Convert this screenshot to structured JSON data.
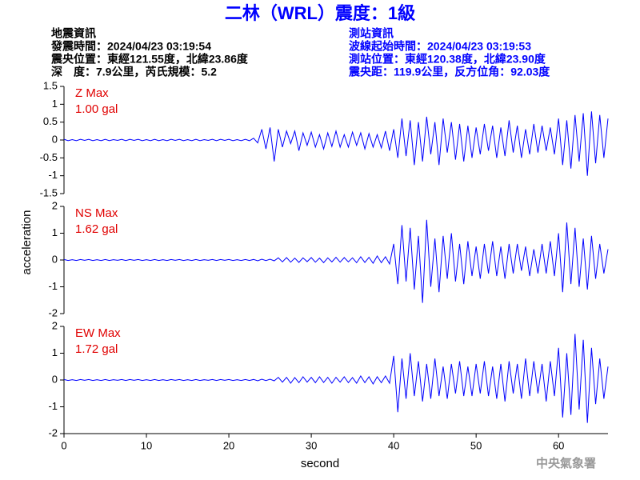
{
  "header": {
    "title": "二林（WRL）震度：1級",
    "left": [
      "地震資訊",
      "發震時間：2024/04/23 03:19:54",
      "震央位置：東經121.55度，北緯23.86度",
      "深　度：7.9公里，芮氏規模：5.2"
    ],
    "right": [
      "測站資訊",
      "波線起始時間：2024/04/23 03:19:53",
      "測站位置：東經120.38度，北緯23.90度",
      "震央距：119.9公里，反方位角：92.03度"
    ]
  },
  "y_label": "acceleration",
  "x_label": "second",
  "footer": "中央氣象署",
  "chart_data": [
    {
      "type": "line",
      "annotation": [
        "Z Max",
        "1.00 gal"
      ],
      "xlim": [
        0,
        66
      ],
      "ylim": [
        -1.5,
        1.5
      ],
      "yticks": [
        -1.5,
        -1,
        -0.5,
        0,
        0.5,
        1,
        1.5
      ],
      "x": [
        0,
        0.5,
        1,
        1.5,
        2,
        2.5,
        3,
        3.5,
        4,
        4.5,
        5,
        5.5,
        6,
        6.5,
        7,
        7.5,
        8,
        8.5,
        9,
        9.5,
        10,
        10.5,
        11,
        11.5,
        12,
        12.5,
        13,
        13.5,
        14,
        14.5,
        15,
        15.5,
        16,
        16.5,
        17,
        17.5,
        18,
        18.5,
        19,
        19.5,
        20,
        20.5,
        21,
        21.5,
        22,
        22.5,
        23,
        23.5,
        24,
        24.5,
        25,
        25.5,
        26,
        26.5,
        27,
        27.5,
        28,
        28.5,
        29,
        29.5,
        30,
        30.5,
        31,
        31.5,
        32,
        32.5,
        33,
        33.5,
        34,
        34.5,
        35,
        35.5,
        36,
        36.5,
        37,
        37.5,
        38,
        38.5,
        39,
        39.5,
        40,
        40.5,
        41,
        41.5,
        42,
        42.5,
        43,
        43.5,
        44,
        44.5,
        45,
        45.5,
        46,
        46.5,
        47,
        47.5,
        48,
        48.5,
        49,
        49.5,
        50,
        50.5,
        51,
        51.5,
        52,
        52.5,
        53,
        53.5,
        54,
        54.5,
        55,
        55.5,
        56,
        56.5,
        57,
        57.5,
        58,
        58.5,
        59,
        59.5,
        60,
        60.5,
        61,
        61.5,
        62,
        62.5,
        63,
        63.5,
        64,
        64.5,
        65,
        65.5,
        66
      ],
      "series": [
        {
          "name": "Z",
          "color": "#0000ff",
          "values": [
            0.02,
            -0.02,
            0.01,
            -0.02,
            0.02,
            -0.01,
            0.02,
            -0.02,
            0.01,
            -0.02,
            0.02,
            -0.02,
            0.01,
            -0.01,
            0.02,
            -0.02,
            0.02,
            -0.01,
            0.02,
            -0.02,
            0.01,
            -0.02,
            0.02,
            -0.02,
            0.01,
            -0.02,
            0.02,
            -0.01,
            0.02,
            -0.02,
            0.01,
            -0.02,
            0.02,
            -0.02,
            0.01,
            -0.01,
            0.02,
            -0.02,
            0.02,
            -0.01,
            0.02,
            -0.02,
            0.01,
            -0.02,
            0.02,
            -0.02,
            0.05,
            -0.08,
            0.3,
            -0.25,
            0.35,
            -0.6,
            0.3,
            -0.2,
            0.25,
            -0.1,
            0.25,
            -0.3,
            0.2,
            -0.15,
            0.22,
            -0.2,
            0.15,
            -0.25,
            0.2,
            -0.18,
            0.25,
            -0.2,
            0.15,
            -0.2,
            0.22,
            -0.15,
            0.2,
            -0.25,
            0.18,
            -0.2,
            0.15,
            -0.22,
            0.25,
            -0.3,
            0.3,
            -0.5,
            0.6,
            -0.45,
            0.55,
            -0.7,
            0.5,
            -0.6,
            0.65,
            -0.4,
            0.5,
            -0.7,
            0.6,
            -0.35,
            0.5,
            -0.55,
            0.45,
            -0.6,
            0.4,
            -0.5,
            0.35,
            -0.4,
            0.45,
            -0.3,
            0.4,
            -0.5,
            0.35,
            -0.45,
            0.55,
            -0.35,
            0.4,
            -0.5,
            0.3,
            -0.4,
            0.45,
            -0.35,
            0.4,
            -0.3,
            0.35,
            -0.4,
            0.6,
            -0.7,
            0.55,
            -0.8,
            0.7,
            -0.6,
            0.75,
            -1.0,
            0.8,
            -0.65,
            0.7,
            -0.5,
            0.6
          ]
        }
      ]
    },
    {
      "type": "line",
      "annotation": [
        "NS Max",
        "1.62 gal"
      ],
      "xlim": [
        0,
        66
      ],
      "ylim": [
        -2,
        2
      ],
      "yticks": [
        -2,
        -1,
        0,
        1,
        2
      ],
      "x": [
        0,
        0.5,
        1,
        1.5,
        2,
        2.5,
        3,
        3.5,
        4,
        4.5,
        5,
        5.5,
        6,
        6.5,
        7,
        7.5,
        8,
        8.5,
        9,
        9.5,
        10,
        10.5,
        11,
        11.5,
        12,
        12.5,
        13,
        13.5,
        14,
        14.5,
        15,
        15.5,
        16,
        16.5,
        17,
        17.5,
        18,
        18.5,
        19,
        19.5,
        20,
        20.5,
        21,
        21.5,
        22,
        22.5,
        23,
        23.5,
        24,
        24.5,
        25,
        25.5,
        26,
        26.5,
        27,
        27.5,
        28,
        28.5,
        29,
        29.5,
        30,
        30.5,
        31,
        31.5,
        32,
        32.5,
        33,
        33.5,
        34,
        34.5,
        35,
        35.5,
        36,
        36.5,
        37,
        37.5,
        38,
        38.5,
        39,
        39.5,
        40,
        40.5,
        41,
        41.5,
        42,
        42.5,
        43,
        43.5,
        44,
        44.5,
        45,
        45.5,
        46,
        46.5,
        47,
        47.5,
        48,
        48.5,
        49,
        49.5,
        50,
        50.5,
        51,
        51.5,
        52,
        52.5,
        53,
        53.5,
        54,
        54.5,
        55,
        55.5,
        56,
        56.5,
        57,
        57.5,
        58,
        58.5,
        59,
        59.5,
        60,
        60.5,
        61,
        61.5,
        62,
        62.5,
        63,
        63.5,
        64,
        64.5,
        65,
        65.5,
        66
      ],
      "series": [
        {
          "name": "NS",
          "color": "#0000ff",
          "values": [
            0.02,
            -0.02,
            0.01,
            -0.02,
            0.02,
            -0.01,
            0.02,
            -0.02,
            0.01,
            -0.02,
            0.02,
            -0.02,
            0.01,
            -0.01,
            0.02,
            -0.02,
            0.02,
            -0.01,
            0.02,
            -0.02,
            0.01,
            -0.02,
            0.02,
            -0.02,
            0.01,
            -0.02,
            0.02,
            -0.01,
            0.02,
            -0.02,
            0.01,
            -0.02,
            0.02,
            -0.02,
            0.01,
            -0.01,
            0.02,
            -0.02,
            0.02,
            -0.01,
            0.02,
            -0.02,
            0.01,
            -0.02,
            0.02,
            -0.02,
            0.02,
            -0.03,
            0.03,
            -0.02,
            0.03,
            -0.03,
            0.08,
            -0.07,
            0.09,
            -0.08,
            0.07,
            -0.09,
            0.08,
            -0.06,
            0.09,
            -0.08,
            0.07,
            -0.1,
            0.08,
            -0.07,
            0.1,
            -0.08,
            0.09,
            -0.07,
            0.08,
            -0.1,
            0.12,
            -0.09,
            0.1,
            -0.12,
            0.15,
            -0.1,
            0.12,
            -0.15,
            0.6,
            -0.9,
            1.3,
            -0.8,
            1.2,
            -1.1,
            0.9,
            -1.6,
            1.5,
            -1.0,
            0.8,
            -1.2,
            0.9,
            -0.7,
            1.0,
            -0.8,
            0.6,
            -0.9,
            0.7,
            -0.6,
            0.5,
            -0.7,
            0.6,
            -0.5,
            0.7,
            -0.6,
            0.5,
            -0.7,
            0.6,
            -0.5,
            0.6,
            -0.4,
            0.5,
            -0.6,
            0.4,
            -0.5,
            0.6,
            -0.5,
            0.7,
            -0.6,
            1.0,
            -1.2,
            1.4,
            -0.9,
            1.2,
            -1.0,
            0.8,
            -1.1,
            0.9,
            -0.7,
            0.6,
            -0.5,
            0.4
          ]
        }
      ]
    },
    {
      "type": "line",
      "annotation": [
        "EW Max",
        "1.72 gal"
      ],
      "xlim": [
        0,
        66
      ],
      "ylim": [
        -2,
        2
      ],
      "yticks": [
        -2,
        -1,
        0,
        1,
        2
      ],
      "xticks": [
        0,
        10,
        20,
        30,
        40,
        50,
        60
      ],
      "x": [
        0,
        0.5,
        1,
        1.5,
        2,
        2.5,
        3,
        3.5,
        4,
        4.5,
        5,
        5.5,
        6,
        6.5,
        7,
        7.5,
        8,
        8.5,
        9,
        9.5,
        10,
        10.5,
        11,
        11.5,
        12,
        12.5,
        13,
        13.5,
        14,
        14.5,
        15,
        15.5,
        16,
        16.5,
        17,
        17.5,
        18,
        18.5,
        19,
        19.5,
        20,
        20.5,
        21,
        21.5,
        22,
        22.5,
        23,
        23.5,
        24,
        24.5,
        25,
        25.5,
        26,
        26.5,
        27,
        27.5,
        28,
        28.5,
        29,
        29.5,
        30,
        30.5,
        31,
        31.5,
        32,
        32.5,
        33,
        33.5,
        34,
        34.5,
        35,
        35.5,
        36,
        36.5,
        37,
        37.5,
        38,
        38.5,
        39,
        39.5,
        40,
        40.5,
        41,
        41.5,
        42,
        42.5,
        43,
        43.5,
        44,
        44.5,
        45,
        45.5,
        46,
        46.5,
        47,
        47.5,
        48,
        48.5,
        49,
        49.5,
        50,
        50.5,
        51,
        51.5,
        52,
        52.5,
        53,
        53.5,
        54,
        54.5,
        55,
        55.5,
        56,
        56.5,
        57,
        57.5,
        58,
        58.5,
        59,
        59.5,
        60,
        60.5,
        61,
        61.5,
        62,
        62.5,
        63,
        63.5,
        64,
        64.5,
        65,
        65.5,
        66
      ],
      "series": [
        {
          "name": "EW",
          "color": "#0000ff",
          "values": [
            0.02,
            -0.02,
            0.01,
            -0.02,
            0.02,
            -0.01,
            0.02,
            -0.02,
            0.01,
            -0.02,
            0.02,
            -0.02,
            0.01,
            -0.01,
            0.02,
            -0.02,
            0.02,
            -0.01,
            0.02,
            -0.02,
            0.01,
            -0.02,
            0.02,
            -0.02,
            0.01,
            -0.02,
            0.02,
            -0.01,
            0.02,
            -0.02,
            0.01,
            -0.02,
            0.02,
            -0.02,
            0.01,
            -0.01,
            0.02,
            -0.02,
            0.02,
            -0.01,
            0.02,
            -0.02,
            0.01,
            -0.02,
            0.02,
            -0.02,
            0.02,
            -0.03,
            0.03,
            -0.02,
            0.03,
            -0.03,
            0.1,
            -0.08,
            0.1,
            -0.12,
            0.09,
            -0.1,
            0.12,
            -0.08,
            0.1,
            -0.1,
            0.12,
            -0.09,
            0.1,
            -0.12,
            0.1,
            -0.08,
            0.12,
            -0.1,
            0.09,
            -0.12,
            0.15,
            -0.1,
            0.12,
            -0.15,
            0.12,
            -0.1,
            0.15,
            -0.12,
            0.9,
            -1.2,
            0.8,
            -0.7,
            1.0,
            -0.6,
            0.7,
            -0.8,
            0.6,
            -0.7,
            0.8,
            -0.6,
            0.5,
            -0.7,
            0.6,
            -0.5,
            0.7,
            -0.6,
            0.5,
            -0.6,
            0.6,
            -0.5,
            0.7,
            -0.6,
            0.5,
            -0.7,
            0.6,
            -0.8,
            0.7,
            -0.5,
            0.6,
            -0.7,
            0.8,
            -0.6,
            0.7,
            -0.5,
            0.6,
            -0.8,
            0.7,
            -0.6,
            1.2,
            -1.4,
            1.0,
            -1.3,
            1.72,
            -1.1,
            1.5,
            -1.6,
            1.2,
            -0.9,
            0.8,
            -0.7,
            0.5
          ]
        }
      ]
    }
  ]
}
